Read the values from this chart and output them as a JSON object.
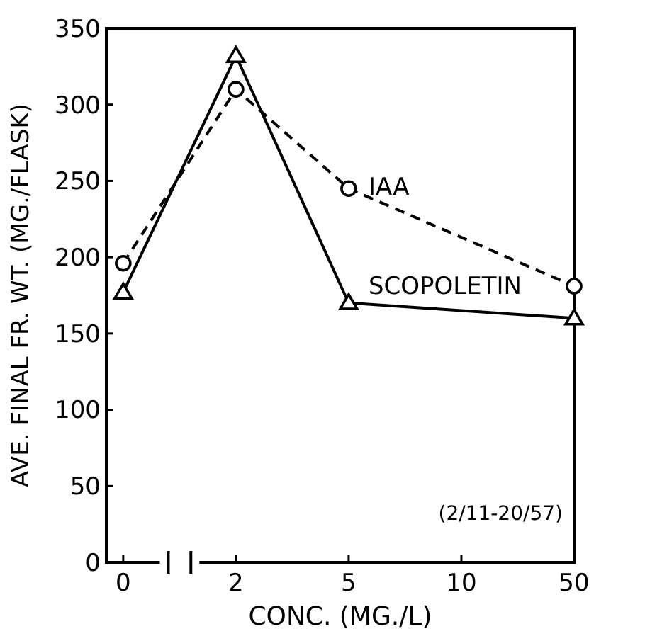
{
  "chart_data": {
    "type": "line",
    "xlabel": "CONC. (MG./L)",
    "ylabel": "AVE. FINAL FR. WT. (MG./FLASK)",
    "categories": [
      "0",
      "2",
      "5",
      "10",
      "50"
    ],
    "ylim": [
      0,
      350
    ],
    "yticks": [
      0,
      50,
      100,
      150,
      200,
      250,
      300,
      350
    ],
    "annotations": [
      "(2/11-20/57)"
    ],
    "series": [
      {
        "name": "IAA",
        "color": "#000000",
        "values": [
          196,
          310,
          245,
          null,
          181
        ],
        "marker": "circle",
        "line_style": "dashed"
      },
      {
        "name": "SCOPOLETIN",
        "color": "#000000",
        "values": [
          177,
          332,
          170,
          null,
          160
        ],
        "marker": "triangle",
        "line_style": "solid"
      }
    ]
  }
}
